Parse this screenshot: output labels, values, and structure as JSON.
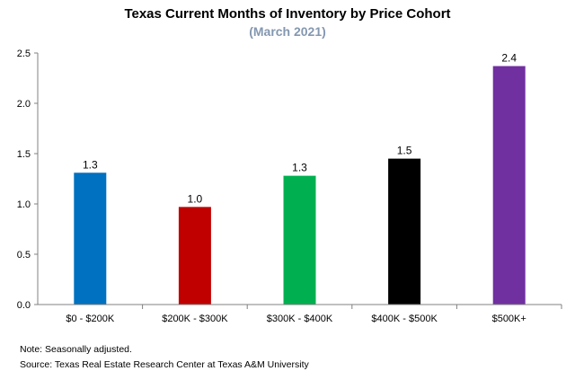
{
  "chart_data": {
    "type": "bar",
    "title": "Texas Current Months of Inventory by Price Cohort",
    "subtitle": "(March 2021)",
    "categories": [
      "$0 - $200K",
      "$200K - $300K",
      "$300K - $400K",
      "$400K - $500K",
      "$500K+"
    ],
    "values": [
      1.31,
      0.97,
      1.28,
      1.45,
      2.37
    ],
    "data_labels": [
      "1.3",
      "1.0",
      "1.3",
      "1.5",
      "2.4"
    ],
    "bar_colors": [
      "#0070C0",
      "#C00000",
      "#00B050",
      "#000000",
      "#7030A0"
    ],
    "ylim": [
      0,
      2.5
    ],
    "yticks": [
      "0.0",
      "0.5",
      "1.0",
      "1.5",
      "2.0",
      "2.5"
    ],
    "grid": false,
    "xlabel": "",
    "ylabel": ""
  },
  "colors": {
    "subtitle": "#8497B0",
    "axis": "#808080"
  },
  "footer": {
    "note": "Note: Seasonally adjusted.",
    "source": "Source: Texas Real Estate Research Center at Texas A&M University"
  }
}
